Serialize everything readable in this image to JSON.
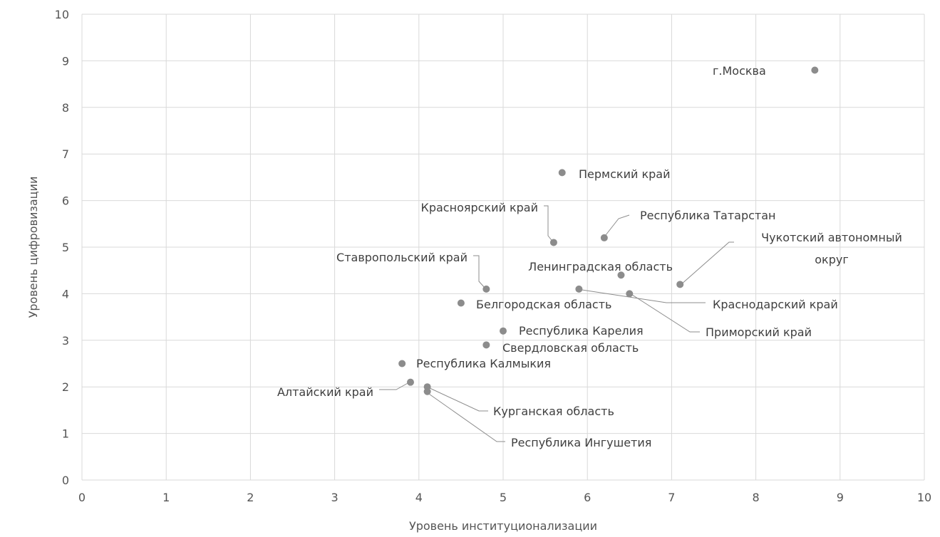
{
  "chart_data": {
    "type": "scatter",
    "title": "",
    "xlabel": "Уровень институционализации",
    "ylabel": "Уровень цифровизации",
    "xlim": [
      0,
      10
    ],
    "ylim": [
      0,
      10
    ],
    "x_ticks": [
      "0",
      "1",
      "2",
      "3",
      "4",
      "5",
      "6",
      "7",
      "8",
      "9",
      "10"
    ],
    "y_ticks": [
      "0",
      "1",
      "2",
      "3",
      "4",
      "5",
      "6",
      "7",
      "8",
      "9",
      "10"
    ],
    "grid": true,
    "legend": "none",
    "point_color": "#8c8c8c",
    "points": [
      {
        "label": "г.Москва",
        "x": 8.7,
        "y": 8.8
      },
      {
        "label": "Пермский край",
        "x": 5.7,
        "y": 6.6
      },
      {
        "label": "Красноярский край",
        "x": 5.6,
        "y": 5.1
      },
      {
        "label": "Республика Татарстан",
        "x": 6.2,
        "y": 5.2
      },
      {
        "label": "Чукотский автономный округ",
        "x": 7.1,
        "y": 4.2
      },
      {
        "label": "Ленинградская область",
        "x": 6.4,
        "y": 4.4
      },
      {
        "label": "Ставропольский край",
        "x": 4.8,
        "y": 4.1
      },
      {
        "label": "Краснодарский край",
        "x": 5.9,
        "y": 4.1
      },
      {
        "label": "Приморский край",
        "x": 6.5,
        "y": 4.0
      },
      {
        "label": "Белгородская область",
        "x": 4.5,
        "y": 3.8
      },
      {
        "label": "Республика Карелия",
        "x": 5.0,
        "y": 3.2
      },
      {
        "label": "Свердловская область",
        "x": 4.8,
        "y": 2.9
      },
      {
        "label": "Республика Калмыкия",
        "x": 3.8,
        "y": 2.5
      },
      {
        "label": "Алтайский край",
        "x": 3.9,
        "y": 2.1
      },
      {
        "label": "Курганская область",
        "x": 4.1,
        "y": 2.0
      },
      {
        "label": "Республика Ингушетия",
        "x": 4.1,
        "y": 1.9
      }
    ]
  }
}
